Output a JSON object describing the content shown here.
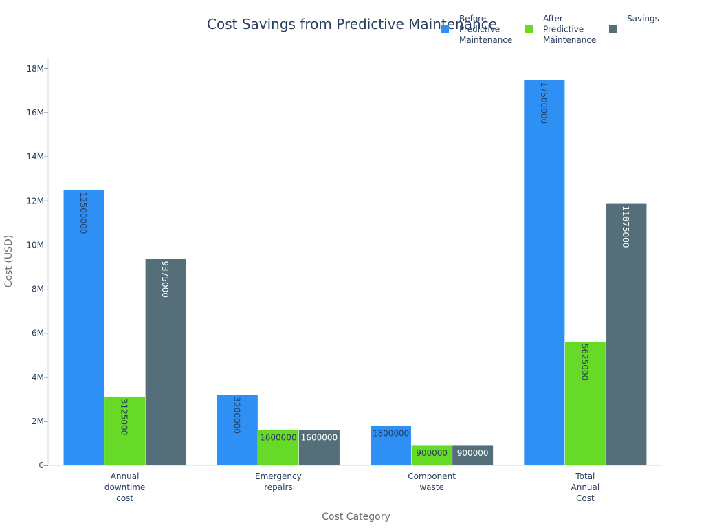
{
  "chart_data": {
    "type": "bar",
    "title": "Cost Savings from Predictive Maintenance",
    "xlabel": "Cost Category",
    "ylabel": "Cost (USD)",
    "categories": [
      [
        "Annual",
        "downtime",
        "cost"
      ],
      [
        "Emergency",
        "repairs"
      ],
      [
        "Component",
        "waste"
      ],
      [
        "Total",
        "Annual",
        "Cost"
      ]
    ],
    "series": [
      {
        "name": [
          "Before",
          "Predictive",
          "Maintenance"
        ],
        "color": "#2e90f5",
        "values": [
          12500000,
          3200000,
          1800000,
          17500000
        ],
        "labels": [
          "12500000",
          "3200000",
          "1800000",
          "17500000"
        ],
        "label_color": "#2a3f5f"
      },
      {
        "name": [
          "After",
          "Predictive",
          "Maintenance"
        ],
        "color": "#66da26",
        "values": [
          3125000,
          1600000,
          900000,
          5625000
        ],
        "labels": [
          "3125000",
          "1600000",
          "900000",
          "5625000"
        ],
        "label_color": "#2a3f5f"
      },
      {
        "name": [
          "Savings"
        ],
        "color": "#546e7a",
        "values": [
          9375000,
          1600000,
          900000,
          11875000
        ],
        "labels": [
          "9375000",
          "1600000",
          "900000",
          "11875000"
        ],
        "label_color": "#ffffff"
      }
    ],
    "ylim": [
      0,
      18500000
    ],
    "yticks": [
      0,
      2000000,
      4000000,
      6000000,
      8000000,
      10000000,
      12000000,
      14000000,
      16000000,
      18000000
    ],
    "ytick_labels": [
      "0",
      "2M",
      "4M",
      "6M",
      "8M",
      "10M",
      "12M",
      "14M",
      "16M",
      "18M"
    ],
    "grid": false,
    "legend_position": "top-right"
  }
}
